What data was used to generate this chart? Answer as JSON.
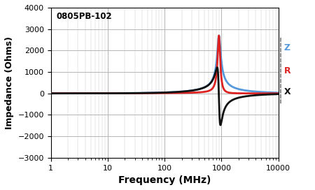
{
  "title": "0805PB-102",
  "xlabel": "Frequency (MHz)",
  "ylabel": "Impedance (Ohms)",
  "xlim": [
    1,
    10000
  ],
  "ylim": [
    -3000,
    4000
  ],
  "yticks": [
    -3000,
    -2000,
    -1000,
    0,
    1000,
    2000,
    3000,
    4000
  ],
  "legend_labels": [
    "Z",
    "R",
    "X"
  ],
  "legend_colors": [
    "#5599dd",
    "#dd2222",
    "#111111"
  ],
  "bg_color": "#ffffff",
  "grid_major_color": "#aaaaaa",
  "grid_minor_color": "#cccccc"
}
